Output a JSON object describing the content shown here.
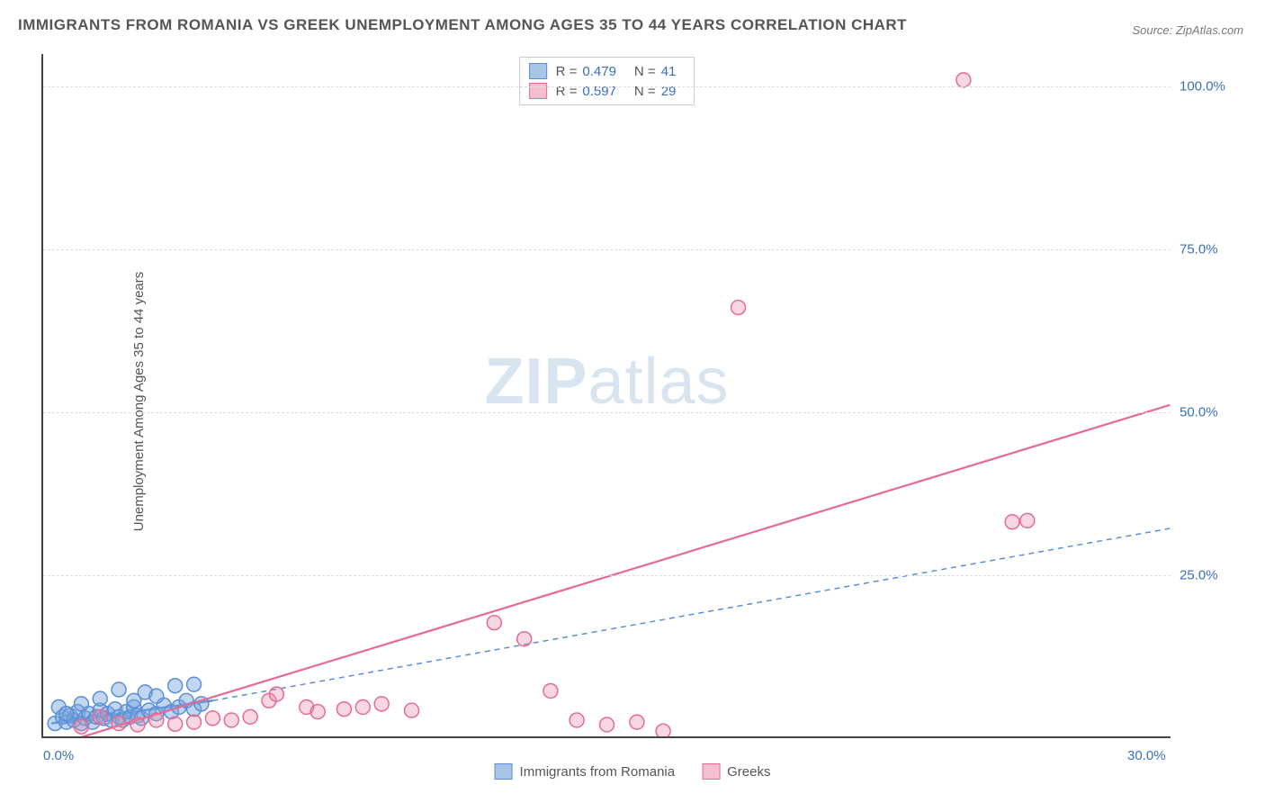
{
  "title": "IMMIGRANTS FROM ROMANIA VS GREEK UNEMPLOYMENT AMONG AGES 35 TO 44 YEARS CORRELATION CHART",
  "source": "Source: ZipAtlas.com",
  "ylabel": "Unemployment Among Ages 35 to 44 years",
  "watermark_z": "ZIP",
  "watermark_a": "atlas",
  "chart": {
    "type": "scatter-correlation",
    "background_color": "#ffffff",
    "border_color": "#444444",
    "grid_color": "#dddddd",
    "label_color": "#555555",
    "tick_color": "#3b6fb6",
    "xlim": [
      0,
      30
    ],
    "ylim": [
      0,
      105
    ],
    "yticks": [
      25,
      50,
      75,
      100
    ],
    "ytick_labels": [
      "25.0%",
      "50.0%",
      "75.0%",
      "100.0%"
    ],
    "xticks": [
      0,
      30
    ],
    "xtick_labels": [
      "0.0%",
      "30.0%"
    ],
    "marker_radius": 8,
    "marker_stroke_width": 1.5,
    "series": [
      {
        "name": "Immigrants from Romania",
        "color_fill": "rgba(120,165,220,0.45)",
        "color_stroke": "#5a8fd6",
        "swatch_fill": "#a8c5e8",
        "swatch_stroke": "#5a8fd6",
        "R": "0.479",
        "N": "41",
        "regression": {
          "style": "dashed",
          "width": 1.5,
          "x1": 0.2,
          "y1": 2.0,
          "x2": 30.0,
          "y2": 32.0,
          "solid_until_x": 4.5,
          "solid_until_y": 5.5
        },
        "points": [
          {
            "x": 0.3,
            "y": 2.0
          },
          {
            "x": 0.5,
            "y": 3.0
          },
          {
            "x": 0.6,
            "y": 2.2
          },
          {
            "x": 0.7,
            "y": 3.2
          },
          {
            "x": 0.8,
            "y": 2.5
          },
          {
            "x": 0.9,
            "y": 3.8
          },
          {
            "x": 1.0,
            "y": 2.0
          },
          {
            "x": 1.1,
            "y": 2.8
          },
          {
            "x": 1.2,
            "y": 3.5
          },
          {
            "x": 1.3,
            "y": 2.2
          },
          {
            "x": 1.4,
            "y": 3.0
          },
          {
            "x": 1.5,
            "y": 4.0
          },
          {
            "x": 1.6,
            "y": 2.8
          },
          {
            "x": 1.7,
            "y": 3.5
          },
          {
            "x": 1.8,
            "y": 2.5
          },
          {
            "x": 1.9,
            "y": 4.2
          },
          {
            "x": 2.0,
            "y": 3.0
          },
          {
            "x": 2.1,
            "y": 2.5
          },
          {
            "x": 2.2,
            "y": 3.8
          },
          {
            "x": 2.3,
            "y": 3.0
          },
          {
            "x": 2.4,
            "y": 4.5
          },
          {
            "x": 2.5,
            "y": 3.2
          },
          {
            "x": 2.6,
            "y": 2.8
          },
          {
            "x": 2.8,
            "y": 4.0
          },
          {
            "x": 3.0,
            "y": 3.5
          },
          {
            "x": 3.2,
            "y": 4.8
          },
          {
            "x": 3.4,
            "y": 3.8
          },
          {
            "x": 3.6,
            "y": 4.5
          },
          {
            "x": 3.8,
            "y": 5.5
          },
          {
            "x": 4.0,
            "y": 4.2
          },
          {
            "x": 4.2,
            "y": 5.0
          },
          {
            "x": 2.0,
            "y": 7.2
          },
          {
            "x": 2.7,
            "y": 6.8
          },
          {
            "x": 3.5,
            "y": 7.8
          },
          {
            "x": 4.0,
            "y": 8.0
          },
          {
            "x": 1.5,
            "y": 5.8
          },
          {
            "x": 0.4,
            "y": 4.5
          },
          {
            "x": 1.0,
            "y": 5.0
          },
          {
            "x": 2.4,
            "y": 5.5
          },
          {
            "x": 3.0,
            "y": 6.2
          },
          {
            "x": 0.6,
            "y": 3.5
          }
        ]
      },
      {
        "name": "Greeks",
        "color_fill": "rgba(235,140,170,0.35)",
        "color_stroke": "#e66a93",
        "swatch_fill": "#f4c0d1",
        "swatch_stroke": "#e66a93",
        "R": "0.597",
        "N": "29",
        "regression": {
          "style": "solid",
          "width": 2.2,
          "x1": 0.5,
          "y1": -1.0,
          "x2": 30.0,
          "y2": 51.0
        },
        "points": [
          {
            "x": 1.0,
            "y": 1.5
          },
          {
            "x": 1.5,
            "y": 3.0
          },
          {
            "x": 2.0,
            "y": 2.0
          },
          {
            "x": 2.5,
            "y": 1.8
          },
          {
            "x": 3.0,
            "y": 2.5
          },
          {
            "x": 3.5,
            "y": 1.9
          },
          {
            "x": 4.0,
            "y": 2.2
          },
          {
            "x": 4.5,
            "y": 2.8
          },
          {
            "x": 5.0,
            "y": 2.5
          },
          {
            "x": 5.5,
            "y": 3.0
          },
          {
            "x": 6.0,
            "y": 5.5
          },
          {
            "x": 6.2,
            "y": 6.5
          },
          {
            "x": 7.0,
            "y": 4.5
          },
          {
            "x": 7.3,
            "y": 3.8
          },
          {
            "x": 8.0,
            "y": 4.2
          },
          {
            "x": 8.5,
            "y": 4.5
          },
          {
            "x": 9.8,
            "y": 4.0
          },
          {
            "x": 12.0,
            "y": 17.5
          },
          {
            "x": 12.8,
            "y": 15.0
          },
          {
            "x": 13.5,
            "y": 7.0
          },
          {
            "x": 14.2,
            "y": 2.5
          },
          {
            "x": 15.0,
            "y": 1.8
          },
          {
            "x": 15.8,
            "y": 2.2
          },
          {
            "x": 16.5,
            "y": 0.8
          },
          {
            "x": 18.5,
            "y": 66.0
          },
          {
            "x": 24.5,
            "y": 101.0
          },
          {
            "x": 25.8,
            "y": 33.0
          },
          {
            "x": 26.2,
            "y": 33.2
          },
          {
            "x": 9.0,
            "y": 5.0
          }
        ]
      }
    ],
    "bottom_legend": [
      {
        "swatch_fill": "#a8c5e8",
        "swatch_stroke": "#5a8fd6",
        "label": "Immigrants from Romania"
      },
      {
        "swatch_fill": "#f4c0d1",
        "swatch_stroke": "#e66a93",
        "label": "Greeks"
      }
    ],
    "stats_labels": {
      "R": "R =",
      "N": "N ="
    }
  }
}
